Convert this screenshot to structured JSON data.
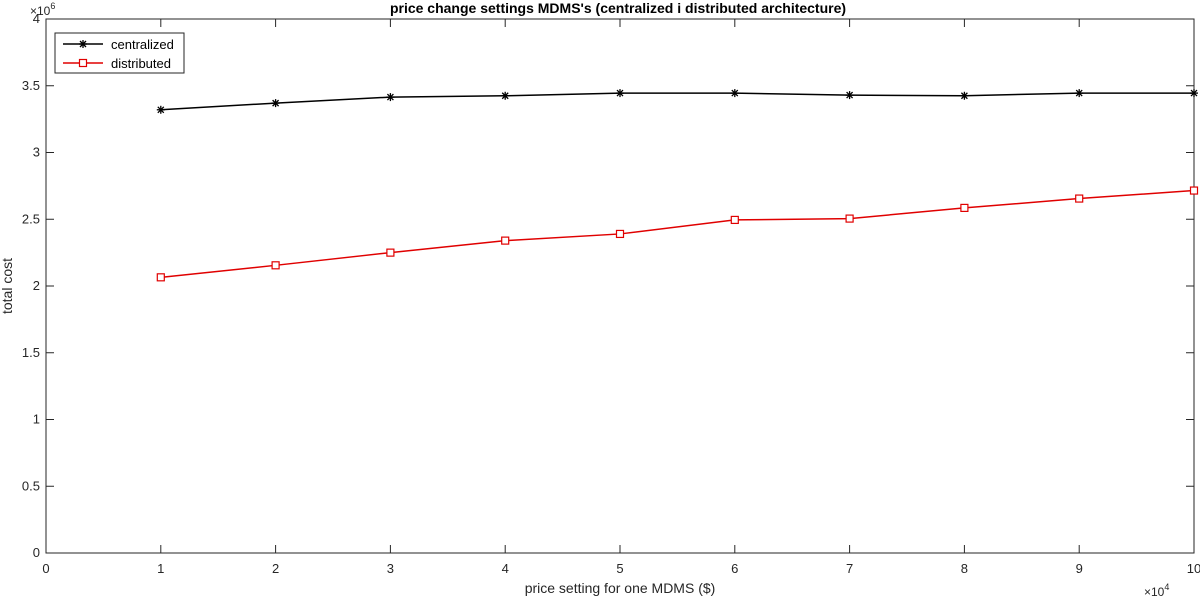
{
  "chart_data": {
    "type": "line",
    "title": "price change settings MDMS's (centralized i distributed architecture)",
    "xlabel": "price setting for one MDMS ($)",
    "ylabel": "total cost",
    "x_multiplier_label": "×10",
    "x_multiplier_exp": "4",
    "y_multiplier_label": "×10",
    "y_multiplier_exp": "6",
    "xlim": [
      0,
      10
    ],
    "ylim": [
      0,
      4
    ],
    "xticks": [
      0,
      1,
      2,
      3,
      4,
      5,
      6,
      7,
      8,
      9,
      10
    ],
    "yticks": [
      0,
      0.5,
      1,
      1.5,
      2,
      2.5,
      3,
      3.5,
      4
    ],
    "xtick_labels": [
      "0",
      "1",
      "2",
      "3",
      "4",
      "5",
      "6",
      "7",
      "8",
      "9",
      "10"
    ],
    "ytick_labels": [
      "0",
      "0.5",
      "1",
      "1.5",
      "2",
      "2.5",
      "3",
      "3.5",
      "4"
    ],
    "grid": false,
    "legend_position": "top-left",
    "x": [
      1,
      2,
      3,
      4,
      5,
      6,
      7,
      8,
      9,
      10
    ],
    "series": [
      {
        "name": "centralized",
        "color": "#000000",
        "marker": "asterisk",
        "values": [
          3.32,
          3.37,
          3.415,
          3.425,
          3.445,
          3.445,
          3.43,
          3.425,
          3.445,
          3.445
        ]
      },
      {
        "name": "distributed",
        "color": "#e00000",
        "marker": "square",
        "values": [
          2.065,
          2.155,
          2.25,
          2.34,
          2.39,
          2.495,
          2.505,
          2.585,
          2.655,
          2.715
        ]
      }
    ]
  }
}
